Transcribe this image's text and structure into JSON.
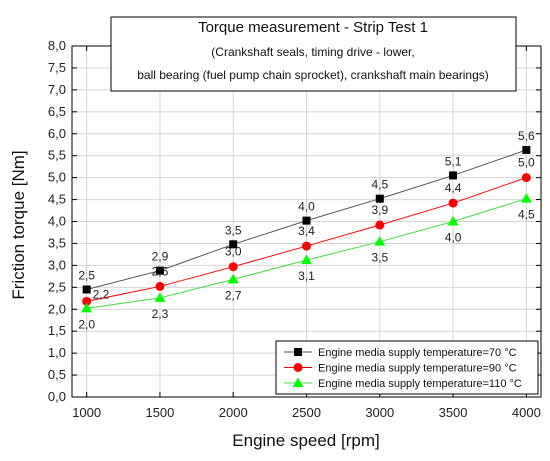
{
  "chart_data": {
    "type": "line",
    "title": "Torque measurement - Strip Test 1",
    "subtitle_line1": "(Crankshaft seals, timing drive - lower,",
    "subtitle_line2": "ball bearing (fuel pump chain sprocket), crankshaft main bearings)",
    "xlabel": "Engine speed [rpm]",
    "ylabel": "Friction torque [Nm]",
    "x": [
      1000,
      1500,
      2000,
      2500,
      3000,
      3500,
      4000
    ],
    "xlim": [
      900,
      4100
    ],
    "ylim": [
      0,
      8
    ],
    "x_ticks": [
      1000,
      1500,
      2000,
      2500,
      3000,
      3500,
      4000
    ],
    "y_ticks": [
      "0,0",
      "0,5",
      "1,0",
      "1,5",
      "2,0",
      "2,5",
      "3,0",
      "3,5",
      "4,0",
      "4,5",
      "5,0",
      "5,5",
      "6,0",
      "6,5",
      "7,0",
      "7,5",
      "8,0"
    ],
    "grid": true,
    "legend_position": "bottom-right",
    "series": [
      {
        "name": "Engine media supply temperature=70 °C",
        "marker": "square",
        "color": "#000000",
        "line_color": "#555555",
        "values": [
          2.45,
          2.88,
          3.48,
          4.02,
          4.52,
          5.05,
          5.63
        ],
        "labels": [
          "2,5",
          "2,9",
          "3,5",
          "4,0",
          "4,5",
          "5,1",
          "5,6"
        ],
        "label_position": "above"
      },
      {
        "name": "Engine media supply temperature=90 °C",
        "marker": "circle",
        "color": "#ff0000",
        "line_color": "#ff0000",
        "values": [
          2.18,
          2.52,
          2.97,
          3.44,
          3.92,
          4.42,
          5.0
        ],
        "labels": [
          "2,2",
          "2,5",
          "3,0",
          "3,4",
          "3,9",
          "4,4",
          "5,0"
        ],
        "label_position": "above-right"
      },
      {
        "name": "Engine media supply temperature=110 °C",
        "marker": "triangle",
        "color": "#00ff00",
        "line_color": "#44dd44",
        "values": [
          2.02,
          2.26,
          2.68,
          3.12,
          3.54,
          4.0,
          4.52
        ],
        "labels": [
          "2,0",
          "2,3",
          "2,7",
          "3,1",
          "3,5",
          "4,0",
          "4,5"
        ],
        "label_position": "below"
      }
    ]
  }
}
